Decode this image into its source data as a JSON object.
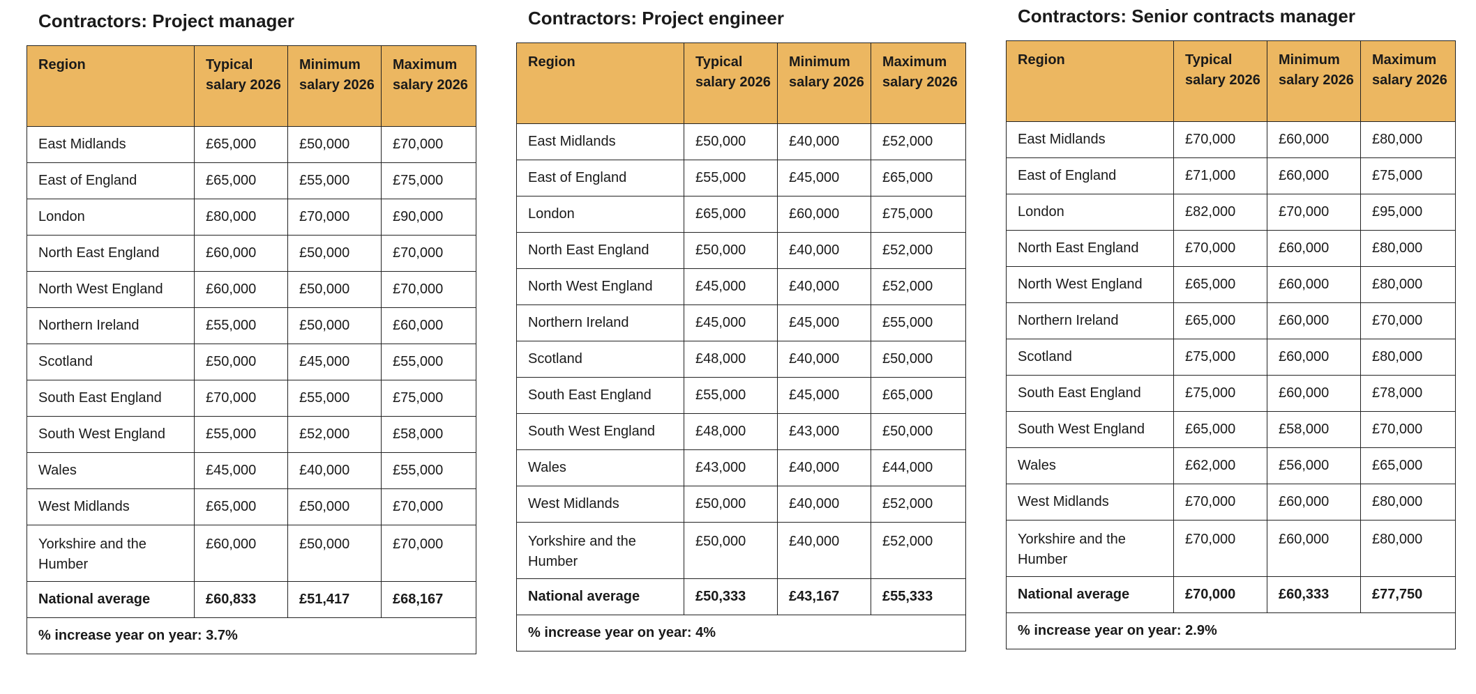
{
  "tables": [
    {
      "title": "Contractors: Project manager",
      "headers": [
        "Region",
        "Typical salary 2026",
        "Minimum salary 2026",
        "Maximum salary 2026"
      ],
      "rows": [
        [
          "East Midlands",
          "£65,000",
          "£50,000",
          "£70,000"
        ],
        [
          "East of England",
          "£65,000",
          "£55,000",
          "£75,000"
        ],
        [
          "London",
          "£80,000",
          "£70,000",
          "£90,000"
        ],
        [
          "North East England",
          "£60,000",
          "£50,000",
          "£70,000"
        ],
        [
          "North West England",
          "£60,000",
          "£50,000",
          "£70,000"
        ],
        [
          "Northern Ireland",
          "£55,000",
          "£50,000",
          "£60,000"
        ],
        [
          "Scotland",
          "£50,000",
          "£45,000",
          "£55,000"
        ],
        [
          "South East England",
          "£70,000",
          "£55,000",
          "£75,000"
        ],
        [
          "South West England",
          "£55,000",
          "£52,000",
          "£58,000"
        ],
        [
          "Wales",
          "£45,000",
          "£40,000",
          "£55,000"
        ],
        [
          "West Midlands",
          "£65,000",
          "£50,000",
          "£70,000"
        ],
        [
          "Yorkshire and the Humber",
          "£60,000",
          "£50,000",
          "£70,000"
        ]
      ],
      "average": [
        "National average",
        "£60,833",
        "£51,417",
        "£68,167"
      ],
      "increase": "% increase year on year: 3.7%"
    },
    {
      "title": "Contractors: Project engineer",
      "headers": [
        "Region",
        "Typical salary 2026",
        "Minimum salary 2026",
        "Maximum salary 2026"
      ],
      "rows": [
        [
          "East Midlands",
          "£50,000",
          "£40,000",
          "£52,000"
        ],
        [
          "East of England",
          "£55,000",
          "£45,000",
          "£65,000"
        ],
        [
          "London",
          "£65,000",
          "£60,000",
          "£75,000"
        ],
        [
          "North East England",
          "£50,000",
          "£40,000",
          "£52,000"
        ],
        [
          "North West England",
          "£45,000",
          "£40,000",
          "£52,000"
        ],
        [
          "Northern Ireland",
          "£45,000",
          "£45,000",
          "£55,000"
        ],
        [
          "Scotland",
          "£48,000",
          "£40,000",
          "£50,000"
        ],
        [
          "South East England",
          "£55,000",
          "£45,000",
          "£65,000"
        ],
        [
          "South West England",
          "£48,000",
          "£43,000",
          "£50,000"
        ],
        [
          "Wales",
          "£43,000",
          "£40,000",
          "£44,000"
        ],
        [
          "West Midlands",
          "£50,000",
          "£40,000",
          "£52,000"
        ],
        [
          "Yorkshire and the Humber",
          "£50,000",
          "£40,000",
          "£52,000"
        ]
      ],
      "average": [
        "National average",
        "£50,333",
        "£43,167",
        "£55,333"
      ],
      "increase": "% increase year on year: 4%"
    },
    {
      "title": "Contractors: Senior contracts manager",
      "headers": [
        "Region",
        "Typical salary 2026",
        "Minimum salary 2026",
        "Maximum salary 2026"
      ],
      "rows": [
        [
          "East Midlands",
          "£70,000",
          "£60,000",
          "£80,000"
        ],
        [
          "East of England",
          "£71,000",
          "£60,000",
          "£75,000"
        ],
        [
          "London",
          "£82,000",
          "£70,000",
          "£95,000"
        ],
        [
          "North East England",
          "£70,000",
          "£60,000",
          "£80,000"
        ],
        [
          "North West England",
          "£65,000",
          "£60,000",
          "£80,000"
        ],
        [
          "Northern Ireland",
          "£65,000",
          "£60,000",
          "£70,000"
        ],
        [
          "Scotland",
          "£75,000",
          "£60,000",
          "£80,000"
        ],
        [
          "South East England",
          "£75,000",
          "£60,000",
          "£78,000"
        ],
        [
          "South West England",
          "£65,000",
          "£58,000",
          "£70,000"
        ],
        [
          "Wales",
          "£62,000",
          "£56,000",
          "£65,000"
        ],
        [
          "West Midlands",
          "£70,000",
          "£60,000",
          "£80,000"
        ],
        [
          "Yorkshire and the Humber",
          "£70,000",
          "£60,000",
          "£80,000"
        ]
      ],
      "average": [
        "National average",
        "£70,000",
        "£60,333",
        "£77,750"
      ],
      "increase": "% increase year on year: 2.9%"
    }
  ]
}
